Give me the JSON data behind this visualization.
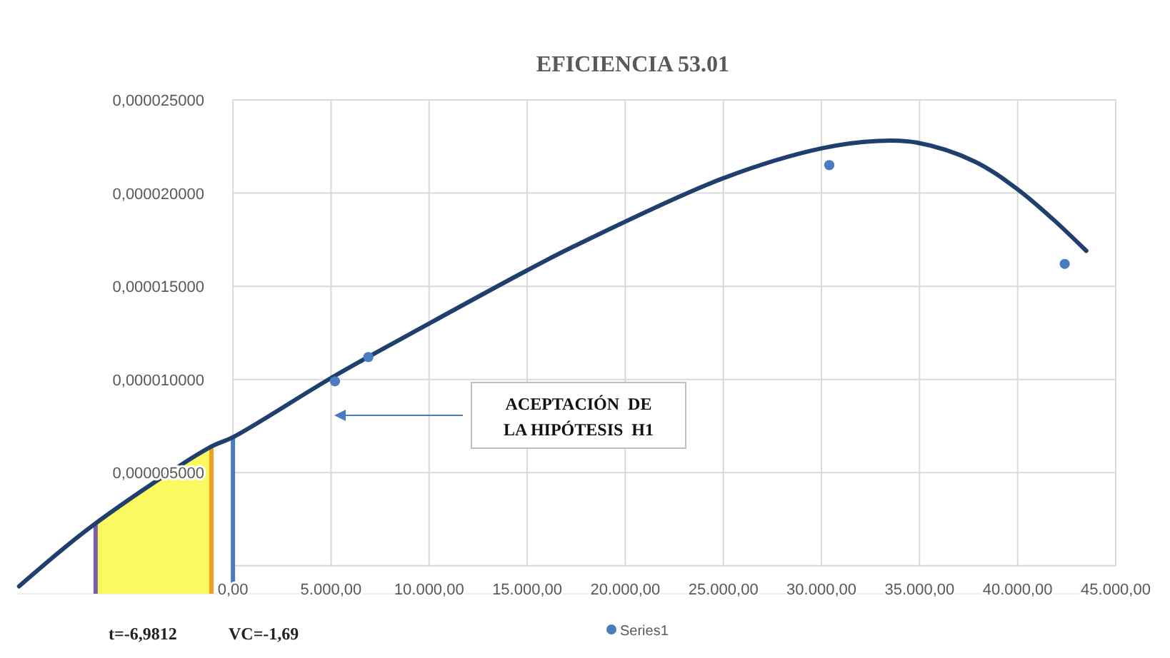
{
  "chart_data": {
    "type": "scatter",
    "title": "EFICIENCIA  53.01",
    "xlim": [
      -11000,
      45000
    ],
    "ylim": [
      -1.5e-06,
      2.5e-05
    ],
    "xticks": [
      {
        "value": 0,
        "label": "0,00"
      },
      {
        "value": 5000,
        "label": "5.000,00"
      },
      {
        "value": 10000,
        "label": "10.000,00"
      },
      {
        "value": 15000,
        "label": "15.000,00"
      },
      {
        "value": 20000,
        "label": "20.000,00"
      },
      {
        "value": 25000,
        "label": "25.000,00"
      },
      {
        "value": 30000,
        "label": "30.000,00"
      },
      {
        "value": 35000,
        "label": "35.000,00"
      },
      {
        "value": 40000,
        "label": "40.000,00"
      },
      {
        "value": 45000,
        "label": "45.000,00"
      }
    ],
    "yticks": [
      {
        "value": 0,
        "label": null
      },
      {
        "value": 5e-06,
        "label": "0,000005000"
      },
      {
        "value": 1e-05,
        "label": "0,000010000"
      },
      {
        "value": 1.5e-05,
        "label": "0,000015000"
      },
      {
        "value": 2e-05,
        "label": "0,000020000"
      },
      {
        "value": 2.5e-05,
        "label": "0,000025000"
      }
    ],
    "grid": true,
    "legend": "bottom",
    "marker": "circle",
    "series": [
      {
        "name": "Series1",
        "color": "#4a7cc0",
        "x": [
          5200,
          6900,
          30400,
          42400
        ],
        "values": [
          9.9e-06,
          1.12e-05,
          2.15e-05,
          1.62e-05
        ]
      },
      {
        "type": "line",
        "marker": "none",
        "color": "#1f3f6e",
        "line_style": "solid",
        "x": [
          -10900,
          -7100,
          -1100,
          0,
          5200,
          10000,
          14900,
          17300,
          25000,
          30000,
          32900,
          34900,
          37800,
          40000,
          41800,
          43500
        ],
        "values": [
          -1.1e-06,
          2.2e-06,
          6.4e-06,
          6.9e-06,
          1.02e-05,
          1.3e-05,
          1.58e-05,
          1.71e-05,
          2.08e-05,
          2.24e-05,
          2.28e-05,
          2.27e-05,
          2.17e-05,
          2.02e-05,
          1.86e-05,
          1.69e-05
        ]
      }
    ],
    "ref_lines": [
      {
        "axis": "x",
        "value": -7000,
        "color": "#7b5ea7"
      },
      {
        "axis": "x",
        "value": -1100,
        "color": "#f0a020"
      },
      {
        "axis": "x",
        "value": 0,
        "color": "#4a7cc0"
      }
    ],
    "bands": [
      {
        "axis": "x",
        "from": -7000,
        "to": -1100,
        "color": "#fafa60"
      }
    ],
    "annotations": [
      "ACEPTACIÓN  DE\nLA HIPÓTESIS  H1",
      "t=-6,9812",
      "VC=-1,69"
    ]
  }
}
